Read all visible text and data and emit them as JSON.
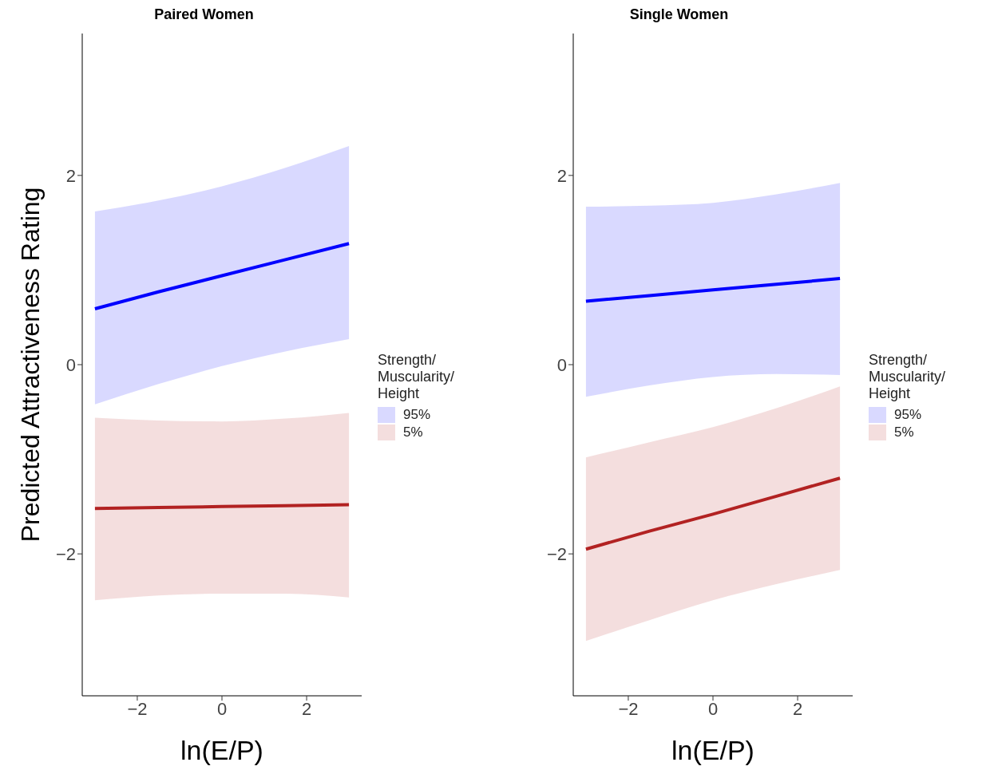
{
  "chart_data": [
    {
      "type": "line",
      "title": "Paired Women",
      "xlabel": "ln(E/P)",
      "ylabel": "Predicted Attractiveness Rating",
      "legend_title": "Strength/\nMuscularity/\nHeight",
      "legend": "right",
      "grid": false,
      "xlim": [
        -3.3,
        3.3
      ],
      "xticks": [
        -2,
        0,
        2
      ],
      "ylim": [
        -3.5,
        3.5
      ],
      "yticks": [
        -2,
        0,
        2
      ],
      "series": [
        {
          "name": "95%",
          "color": "#0000ff",
          "x": [
            -3,
            -1.5,
            0,
            1.5,
            3
          ],
          "values": [
            0.59,
            0.77,
            0.94,
            1.11,
            1.28
          ],
          "lower": [
            -0.42,
            -0.205,
            -0.015,
            0.14,
            0.27
          ],
          "upper": [
            1.62,
            1.735,
            1.885,
            2.08,
            2.31
          ]
        },
        {
          "name": "5%",
          "color": "#b22222",
          "x": [
            -3,
            -1.5,
            0,
            1.5,
            3
          ],
          "values": [
            -1.52,
            -1.51,
            -1.5,
            -1.49,
            -1.48
          ],
          "lower": [
            -2.49,
            -2.44,
            -2.42,
            -2.42,
            -2.46
          ],
          "upper": [
            -0.56,
            -0.59,
            -0.6,
            -0.57,
            -0.51
          ]
        }
      ]
    },
    {
      "type": "line",
      "title": "Single Women",
      "xlabel": "ln(E/P)",
      "legend_title": "Strength/\nMuscularity/\nHeight",
      "legend": "right",
      "grid": false,
      "xlim": [
        -3.3,
        3.3
      ],
      "xticks": [
        -2,
        0,
        2
      ],
      "ylim": [
        -3.5,
        3.5
      ],
      "yticks": [
        -2,
        0,
        2
      ],
      "series": [
        {
          "name": "95%",
          "color": "#0000ff",
          "x": [
            -3,
            -1.5,
            0,
            1.5,
            3
          ],
          "values": [
            0.67,
            0.73,
            0.79,
            0.85,
            0.91
          ],
          "lower": [
            -0.34,
            -0.22,
            -0.13,
            -0.1,
            -0.11
          ],
          "upper": [
            1.67,
            1.68,
            1.71,
            1.8,
            1.92
          ]
        },
        {
          "name": "5%",
          "color": "#b22222",
          "x": [
            -3,
            -1.5,
            0,
            1.5,
            3
          ],
          "values": [
            -1.95,
            -1.76,
            -1.58,
            -1.39,
            -1.2
          ],
          "lower": [
            -2.92,
            -2.7,
            -2.49,
            -2.32,
            -2.17
          ],
          "upper": [
            -0.98,
            -0.82,
            -0.66,
            -0.46,
            -0.23
          ]
        }
      ]
    }
  ]
}
